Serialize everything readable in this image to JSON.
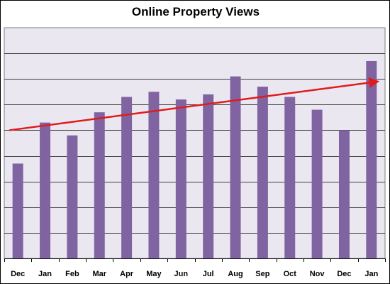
{
  "chart_data": {
    "type": "bar",
    "title": "Online Property Views",
    "categories": [
      "Dec",
      "Jan",
      "Feb",
      "Mar",
      "Apr",
      "May",
      "Jun",
      "Jul",
      "Aug",
      "Sep",
      "Oct",
      "Nov",
      "Dec",
      "Jan"
    ],
    "values": [
      37,
      53,
      48,
      57,
      63,
      65,
      62,
      64,
      71,
      67,
      63,
      58,
      50,
      77
    ],
    "ylim": [
      0,
      90
    ],
    "grid": true,
    "legend": "none",
    "bar_color": "#8064a2",
    "plot_background": "#ebe7f1",
    "trend_arrow": {
      "from": {
        "category_index": 0,
        "value": 50
      },
      "to": {
        "category_index": 13,
        "value": 69
      },
      "color": "#e01b1b"
    }
  }
}
